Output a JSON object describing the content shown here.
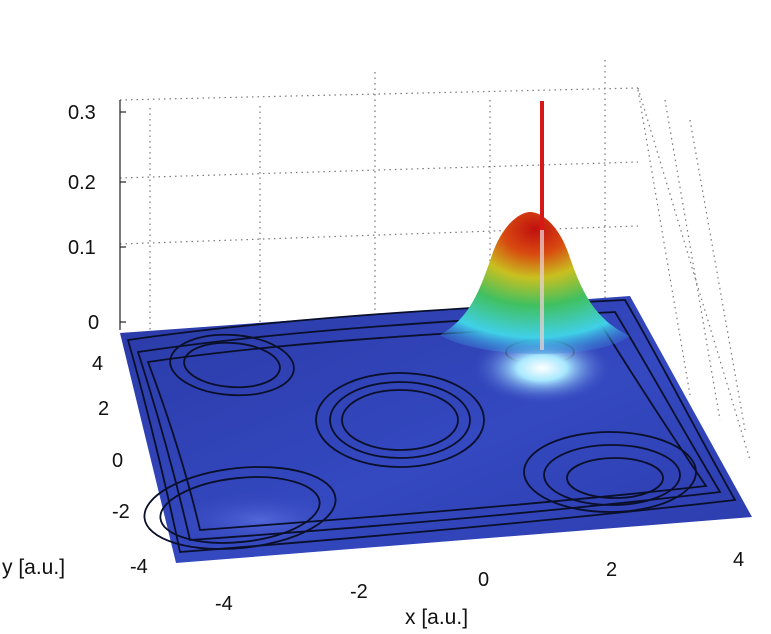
{
  "chart_data": {
    "type": "surface",
    "title": "",
    "xlabel": "x [a.u.]",
    "ylabel": "y [a.u.]",
    "zlabel": "",
    "xlim": [
      -5,
      5
    ],
    "ylim": [
      -5,
      5
    ],
    "zlim": [
      0,
      0.3
    ],
    "x_ticks": [
      "-4",
      "-2",
      "0",
      "2",
      "4"
    ],
    "y_ticks": [
      "-4",
      "-2",
      "0",
      "2",
      "4"
    ],
    "z_ticks": [
      "0",
      "0.1",
      "0.2",
      "0.3"
    ],
    "grid": true,
    "surface": {
      "description_free": true,
      "peak": {
        "x": 2.2,
        "y": 3.3,
        "z": 0.17
      },
      "colormap": "jet"
    },
    "vertical_line": {
      "x": 2.2,
      "y": 3.3,
      "z_range": [
        0,
        0.3
      ],
      "color": "#d81818"
    },
    "potential_wells": [
      {
        "x": -3.2,
        "y": 3.3
      },
      {
        "x": 0.0,
        "y": 0.4
      },
      {
        "x": 3.4,
        "y": -1.5
      },
      {
        "x": -3.3,
        "y": -3.0
      }
    ],
    "colors": {
      "floor": "#2c3fb0",
      "contour": "#0a0f2a",
      "grid": "#555555"
    }
  }
}
